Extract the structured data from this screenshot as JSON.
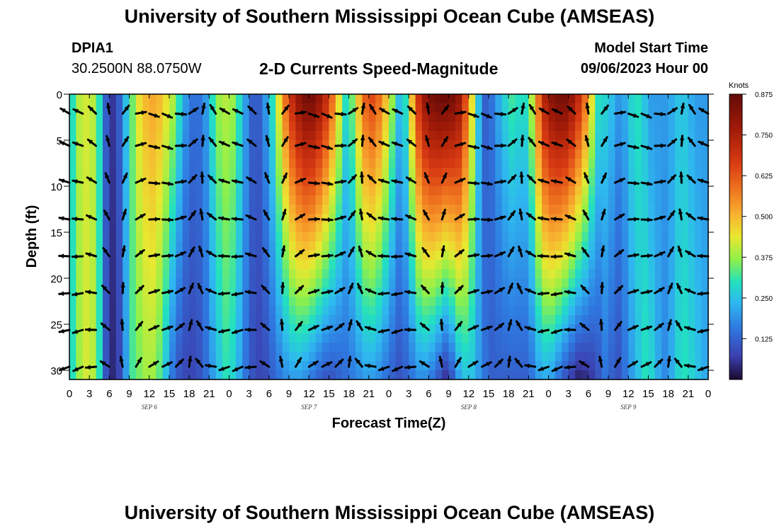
{
  "header": {
    "title": "University of Southern Mississippi Ocean Cube (AMSEAS)",
    "station_id": "DPIA1",
    "coords": "30.2500N  88.0750W",
    "subtitle": "2-D Currents Speed-Magnitude",
    "model_start_label": "Model Start Time",
    "model_start_value": "09/06/2023 Hour 00"
  },
  "footer": {
    "title": "University of Southern Mississippi Ocean Cube (AMSEAS)"
  },
  "chart_data": {
    "type": "heatmap",
    "title": "2-D Currents Speed-Magnitude",
    "xlabel": "Forecast Time(Z)",
    "ylabel": "Depth (ft)",
    "x_ticks": [
      "0",
      "3",
      "6",
      "9",
      "12",
      "15",
      "18",
      "21",
      "0",
      "3",
      "6",
      "9",
      "12",
      "15",
      "18",
      "21",
      "0",
      "3",
      "6",
      "9",
      "12",
      "15",
      "18",
      "21",
      "0",
      "3",
      "6",
      "9",
      "12",
      "15",
      "18",
      "21",
      "0"
    ],
    "x_hours_range": [
      0,
      96
    ],
    "day_labels": [
      {
        "label": "SEP 6",
        "hour": 12
      },
      {
        "label": "SEP 7",
        "hour": 36
      },
      {
        "label": "SEP 8",
        "hour": 60
      },
      {
        "label": "SEP 9",
        "hour": 84
      }
    ],
    "y_ticks": [
      0,
      5,
      10,
      15,
      20,
      25,
      30
    ],
    "ylim": [
      31,
      0
    ],
    "colorbar": {
      "units": "Knots",
      "ticks": [
        "0.875",
        "0.750",
        "0.625",
        "0.500",
        "0.375",
        "0.250",
        "0.125"
      ],
      "tick_values": [
        0.875,
        0.75,
        0.625,
        0.5,
        0.375,
        0.25,
        0.125
      ],
      "range": [
        0,
        0.875
      ],
      "colormap": "jet-like"
    },
    "speed_profiles_knots": {
      "hours": [
        0,
        1,
        2,
        3,
        4,
        5,
        6,
        7,
        8,
        9,
        10,
        11,
        12,
        13,
        14,
        15,
        16,
        17,
        18,
        19,
        20,
        21,
        22,
        23,
        24,
        25,
        26,
        27,
        28,
        29,
        30,
        31,
        32,
        33,
        34,
        35,
        36,
        37,
        38,
        39,
        40,
        41,
        42,
        43,
        44,
        45,
        46,
        47,
        48,
        49,
        50,
        51,
        52,
        53,
        54,
        55,
        56,
        57,
        58,
        59,
        60,
        61,
        62,
        63,
        64,
        65,
        66,
        67,
        68,
        69,
        70,
        71,
        72,
        73,
        74,
        75,
        76,
        77,
        78,
        79,
        80,
        81,
        82,
        83,
        84,
        85,
        86,
        87,
        88,
        89,
        90,
        91,
        92,
        93,
        94,
        95,
        96
      ],
      "surface": [
        0.3,
        0.4,
        0.42,
        0.4,
        0.3,
        0.12,
        0.06,
        0.12,
        0.25,
        0.35,
        0.45,
        0.5,
        0.52,
        0.5,
        0.45,
        0.4,
        0.3,
        0.2,
        0.15,
        0.15,
        0.2,
        0.3,
        0.38,
        0.4,
        0.38,
        0.3,
        0.2,
        0.12,
        0.12,
        0.2,
        0.3,
        0.45,
        0.6,
        0.72,
        0.8,
        0.85,
        0.85,
        0.8,
        0.72,
        0.6,
        0.45,
        0.3,
        0.35,
        0.5,
        0.62,
        0.65,
        0.6,
        0.5,
        0.38,
        0.25,
        0.3,
        0.5,
        0.7,
        0.8,
        0.85,
        0.87,
        0.87,
        0.85,
        0.8,
        0.65,
        0.45,
        0.25,
        0.12,
        0.15,
        0.22,
        0.28,
        0.32,
        0.3,
        0.3,
        0.4,
        0.6,
        0.75,
        0.82,
        0.85,
        0.85,
        0.8,
        0.72,
        0.6,
        0.45,
        0.3,
        0.28,
        0.25,
        0.2,
        0.22,
        0.28,
        0.3,
        0.25,
        0.2,
        0.2,
        0.2,
        0.22,
        0.25,
        0.25,
        0.22,
        0.2,
        0.2,
        0.2
      ],
      "bottom": [
        0.3,
        0.38,
        0.42,
        0.4,
        0.3,
        0.1,
        0.04,
        0.08,
        0.2,
        0.32,
        0.35,
        0.38,
        0.38,
        0.33,
        0.25,
        0.15,
        0.1,
        0.08,
        0.08,
        0.1,
        0.14,
        0.2,
        0.25,
        0.3,
        0.28,
        0.22,
        0.15,
        0.1,
        0.08,
        0.09,
        0.12,
        0.15,
        0.18,
        0.2,
        0.2,
        0.18,
        0.15,
        0.12,
        0.1,
        0.1,
        0.12,
        0.14,
        0.16,
        0.18,
        0.2,
        0.2,
        0.18,
        0.15,
        0.12,
        0.1,
        0.12,
        0.15,
        0.18,
        0.18,
        0.15,
        0.1,
        0.05,
        0.1,
        0.2,
        0.25,
        0.25,
        0.2,
        0.15,
        0.12,
        0.12,
        0.12,
        0.12,
        0.12,
        0.12,
        0.15,
        0.2,
        0.22,
        0.2,
        0.15,
        0.1,
        0.06,
        0.03,
        0.04,
        0.06,
        0.1,
        0.15,
        0.12,
        0.1,
        0.15,
        0.2,
        0.25,
        0.3,
        0.28,
        0.22,
        0.18,
        0.22,
        0.28,
        0.3,
        0.28,
        0.25,
        0.22,
        0.22
      ]
    }
  }
}
